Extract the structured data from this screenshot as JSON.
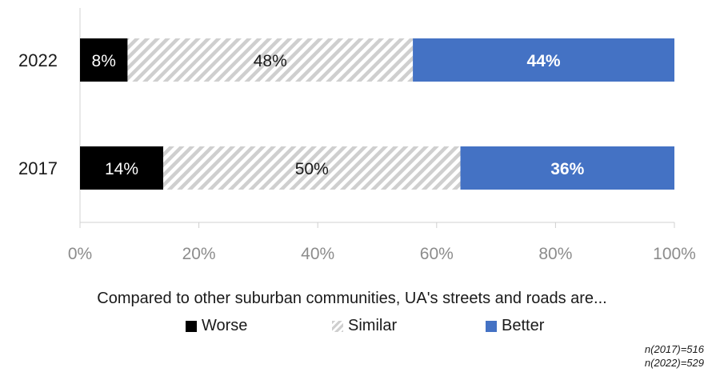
{
  "chart_data": {
    "type": "bar",
    "orientation": "horizontal",
    "stacked": true,
    "categories": [
      "2022",
      "2017"
    ],
    "series": [
      {
        "name": "Worse",
        "values": [
          8,
          14
        ],
        "labels": [
          "8%",
          "14%"
        ],
        "color": "#000000",
        "label_color": "#ffffff",
        "pattern": "solid",
        "label_bold": false
      },
      {
        "name": "Similar",
        "values": [
          48,
          50
        ],
        "labels": [
          "48%",
          "50%"
        ],
        "color": "#c8c8c8",
        "label_color": "#1a1a1a",
        "pattern": "diagonal-hatch",
        "label_bold": false
      },
      {
        "name": "Better",
        "values": [
          44,
          36
        ],
        "labels": [
          "44%",
          "36%"
        ],
        "color": "#4472c4",
        "label_color": "#ffffff",
        "pattern": "solid",
        "label_bold": true
      }
    ],
    "xlim": [
      0,
      100
    ],
    "x_ticks": [
      "0%",
      "20%",
      "40%",
      "60%",
      "80%",
      "100%"
    ],
    "xlabel": "Compared to other suburban communities, UA's streets and roads are...",
    "legend_position": "bottom",
    "grid": false
  },
  "notes": [
    "n(2017)=516",
    "n(2022)=529"
  ]
}
